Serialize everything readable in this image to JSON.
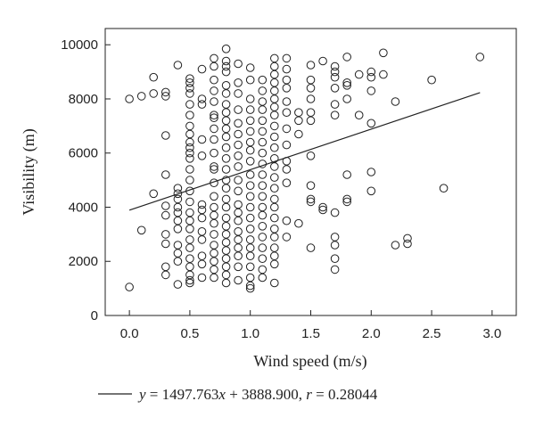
{
  "chart_data": {
    "type": "scatter",
    "xlabel": "Wind speed (m/s)",
    "ylabel": "Visibility (m)",
    "xlim": [
      -0.2,
      3.2
    ],
    "ylim": [
      0,
      10600
    ],
    "xticks": [
      0.0,
      0.5,
      1.0,
      1.5,
      2.0,
      2.5,
      3.0
    ],
    "xtick_labels": [
      "0.0",
      "0.5",
      "1.0",
      "1.5",
      "2.0",
      "2.5",
      "3.0"
    ],
    "yticks": [
      0,
      2000,
      4000,
      6000,
      8000,
      10000
    ],
    "ytick_labels": [
      "0",
      "2000",
      "4000",
      "6000",
      "8000",
      "10000"
    ],
    "grid": false,
    "fit_line": {
      "slope": 1497.763,
      "intercept": 3888.9,
      "x_range": [
        0.0,
        2.9
      ]
    },
    "legend": {
      "position": "bottom",
      "y_var": "y",
      "text_eq": " = 1497.763",
      "x_var": "x",
      "text_rest": " + 3888.900, ",
      "r_var": "r",
      "text_r": " = 0.28044"
    },
    "points": [
      [
        0.0,
        8000
      ],
      [
        0.0,
        1050
      ],
      [
        0.1,
        8100
      ],
      [
        0.1,
        3150
      ],
      [
        0.2,
        8800
      ],
      [
        0.2,
        8200
      ],
      [
        0.2,
        4500
      ],
      [
        0.3,
        8250
      ],
      [
        0.3,
        8100
      ],
      [
        0.3,
        6650
      ],
      [
        0.3,
        5200
      ],
      [
        0.3,
        4050
      ],
      [
        0.3,
        3700
      ],
      [
        0.3,
        3000
      ],
      [
        0.3,
        2650
      ],
      [
        0.3,
        1800
      ],
      [
        0.3,
        1500
      ],
      [
        0.4,
        9250
      ],
      [
        0.4,
        4700
      ],
      [
        0.4,
        4500
      ],
      [
        0.4,
        4300
      ],
      [
        0.4,
        4000
      ],
      [
        0.4,
        3800
      ],
      [
        0.4,
        3500
      ],
      [
        0.4,
        3200
      ],
      [
        0.4,
        2600
      ],
      [
        0.4,
        2300
      ],
      [
        0.4,
        2000
      ],
      [
        0.4,
        1150
      ],
      [
        0.5,
        8750
      ],
      [
        0.5,
        8600
      ],
      [
        0.5,
        8400
      ],
      [
        0.5,
        8200
      ],
      [
        0.5,
        7800
      ],
      [
        0.5,
        7400
      ],
      [
        0.5,
        7000
      ],
      [
        0.5,
        6700
      ],
      [
        0.5,
        6400
      ],
      [
        0.5,
        6200
      ],
      [
        0.5,
        6000
      ],
      [
        0.5,
        5800
      ],
      [
        0.5,
        5400
      ],
      [
        0.5,
        5000
      ],
      [
        0.5,
        4600
      ],
      [
        0.5,
        4200
      ],
      [
        0.5,
        3800
      ],
      [
        0.5,
        3500
      ],
      [
        0.5,
        3200
      ],
      [
        0.5,
        2800
      ],
      [
        0.5,
        2500
      ],
      [
        0.5,
        2100
      ],
      [
        0.5,
        1800
      ],
      [
        0.5,
        1500
      ],
      [
        0.5,
        1300
      ],
      [
        0.5,
        1200
      ],
      [
        0.6,
        9100
      ],
      [
        0.6,
        8000
      ],
      [
        0.6,
        7800
      ],
      [
        0.6,
        6500
      ],
      [
        0.6,
        5900
      ],
      [
        0.6,
        4100
      ],
      [
        0.6,
        3900
      ],
      [
        0.6,
        3600
      ],
      [
        0.6,
        3100
      ],
      [
        0.6,
        2800
      ],
      [
        0.6,
        2200
      ],
      [
        0.6,
        1900
      ],
      [
        0.6,
        1400
      ],
      [
        0.7,
        9500
      ],
      [
        0.7,
        9200
      ],
      [
        0.7,
        8700
      ],
      [
        0.7,
        8300
      ],
      [
        0.7,
        7900
      ],
      [
        0.7,
        7400
      ],
      [
        0.7,
        7300
      ],
      [
        0.7,
        6900
      ],
      [
        0.7,
        6500
      ],
      [
        0.7,
        6000
      ],
      [
        0.7,
        5500
      ],
      [
        0.7,
        5400
      ],
      [
        0.7,
        4900
      ],
      [
        0.7,
        4400
      ],
      [
        0.7,
        4000
      ],
      [
        0.7,
        3700
      ],
      [
        0.7,
        3400
      ],
      [
        0.7,
        3000
      ],
      [
        0.7,
        2600
      ],
      [
        0.7,
        2300
      ],
      [
        0.7,
        2000
      ],
      [
        0.7,
        1700
      ],
      [
        0.7,
        1400
      ],
      [
        0.8,
        9850
      ],
      [
        0.8,
        9400
      ],
      [
        0.8,
        9200
      ],
      [
        0.8,
        9000
      ],
      [
        0.8,
        8500
      ],
      [
        0.8,
        8200
      ],
      [
        0.8,
        7800
      ],
      [
        0.8,
        7500
      ],
      [
        0.8,
        7200
      ],
      [
        0.8,
        6900
      ],
      [
        0.8,
        6600
      ],
      [
        0.8,
        6200
      ],
      [
        0.8,
        5800
      ],
      [
        0.8,
        5400
      ],
      [
        0.8,
        5000
      ],
      [
        0.8,
        4700
      ],
      [
        0.8,
        4300
      ],
      [
        0.8,
        4000
      ],
      [
        0.8,
        3600
      ],
      [
        0.8,
        3300
      ],
      [
        0.8,
        3000
      ],
      [
        0.8,
        2700
      ],
      [
        0.8,
        2400
      ],
      [
        0.8,
        2100
      ],
      [
        0.8,
        1800
      ],
      [
        0.8,
        1500
      ],
      [
        0.8,
        1200
      ],
      [
        0.9,
        9300
      ],
      [
        0.9,
        8600
      ],
      [
        0.9,
        8200
      ],
      [
        0.9,
        7600
      ],
      [
        0.9,
        7100
      ],
      [
        0.9,
        6700
      ],
      [
        0.9,
        6300
      ],
      [
        0.9,
        5900
      ],
      [
        0.9,
        5500
      ],
      [
        0.9,
        5000
      ],
      [
        0.9,
        4600
      ],
      [
        0.9,
        4100
      ],
      [
        0.9,
        3800
      ],
      [
        0.9,
        3500
      ],
      [
        0.9,
        3100
      ],
      [
        0.9,
        2800
      ],
      [
        0.9,
        2500
      ],
      [
        0.9,
        2200
      ],
      [
        0.9,
        1800
      ],
      [
        0.9,
        1300
      ],
      [
        1.0,
        9150
      ],
      [
        1.0,
        8700
      ],
      [
        1.0,
        8000
      ],
      [
        1.0,
        7600
      ],
      [
        1.0,
        7200
      ],
      [
        1.0,
        6800
      ],
      [
        1.0,
        6400
      ],
      [
        1.0,
        6100
      ],
      [
        1.0,
        5700
      ],
      [
        1.0,
        5200
      ],
      [
        1.0,
        4800
      ],
      [
        1.0,
        4400
      ],
      [
        1.0,
        4000
      ],
      [
        1.0,
        3600
      ],
      [
        1.0,
        3200
      ],
      [
        1.0,
        2800
      ],
      [
        1.0,
        2500
      ],
      [
        1.0,
        2200
      ],
      [
        1.0,
        1800
      ],
      [
        1.0,
        1400
      ],
      [
        1.0,
        1100
      ],
      [
        1.0,
        1000
      ],
      [
        1.1,
        8700
      ],
      [
        1.1,
        8300
      ],
      [
        1.1,
        7900
      ],
      [
        1.1,
        7600
      ],
      [
        1.1,
        7200
      ],
      [
        1.1,
        6800
      ],
      [
        1.1,
        6400
      ],
      [
        1.1,
        6000
      ],
      [
        1.1,
        5600
      ],
      [
        1.1,
        5200
      ],
      [
        1.1,
        4800
      ],
      [
        1.1,
        4400
      ],
      [
        1.1,
        4000
      ],
      [
        1.1,
        3700
      ],
      [
        1.1,
        3300
      ],
      [
        1.1,
        2900
      ],
      [
        1.1,
        2500
      ],
      [
        1.1,
        2100
      ],
      [
        1.1,
        1700
      ],
      [
        1.1,
        1400
      ],
      [
        1.2,
        9500
      ],
      [
        1.2,
        9200
      ],
      [
        1.2,
        8900
      ],
      [
        1.2,
        8600
      ],
      [
        1.2,
        8300
      ],
      [
        1.2,
        8000
      ],
      [
        1.2,
        7700
      ],
      [
        1.2,
        7400
      ],
      [
        1.2,
        7000
      ],
      [
        1.2,
        6600
      ],
      [
        1.2,
        6200
      ],
      [
        1.2,
        5800
      ],
      [
        1.2,
        5500
      ],
      [
        1.2,
        5100
      ],
      [
        1.2,
        4700
      ],
      [
        1.2,
        4300
      ],
      [
        1.2,
        4000
      ],
      [
        1.2,
        3600
      ],
      [
        1.2,
        3200
      ],
      [
        1.2,
        2900
      ],
      [
        1.2,
        2500
      ],
      [
        1.2,
        2200
      ],
      [
        1.2,
        1900
      ],
      [
        1.2,
        1200
      ],
      [
        1.3,
        9500
      ],
      [
        1.3,
        9100
      ],
      [
        1.3,
        8700
      ],
      [
        1.3,
        8400
      ],
      [
        1.3,
        7900
      ],
      [
        1.3,
        7500
      ],
      [
        1.3,
        6900
      ],
      [
        1.3,
        6300
      ],
      [
        1.3,
        5700
      ],
      [
        1.3,
        5400
      ],
      [
        1.3,
        4900
      ],
      [
        1.3,
        3500
      ],
      [
        1.3,
        2900
      ],
      [
        1.4,
        7500
      ],
      [
        1.4,
        7200
      ],
      [
        1.4,
        6700
      ],
      [
        1.4,
        3400
      ],
      [
        1.5,
        9250
      ],
      [
        1.5,
        8700
      ],
      [
        1.5,
        8400
      ],
      [
        1.5,
        8000
      ],
      [
        1.5,
        7500
      ],
      [
        1.5,
        7200
      ],
      [
        1.5,
        5900
      ],
      [
        1.5,
        4800
      ],
      [
        1.5,
        4300
      ],
      [
        1.5,
        4200
      ],
      [
        1.5,
        2500
      ],
      [
        1.6,
        9400
      ],
      [
        1.6,
        4000
      ],
      [
        1.6,
        3900
      ],
      [
        1.7,
        9200
      ],
      [
        1.7,
        9000
      ],
      [
        1.7,
        8800
      ],
      [
        1.7,
        8400
      ],
      [
        1.7,
        7800
      ],
      [
        1.7,
        7400
      ],
      [
        1.7,
        3800
      ],
      [
        1.7,
        2900
      ],
      [
        1.7,
        2600
      ],
      [
        1.7,
        2100
      ],
      [
        1.7,
        1700
      ],
      [
        1.8,
        9550
      ],
      [
        1.8,
        8600
      ],
      [
        1.8,
        8500
      ],
      [
        1.8,
        8000
      ],
      [
        1.8,
        5200
      ],
      [
        1.8,
        4300
      ],
      [
        1.8,
        4200
      ],
      [
        1.9,
        8900
      ],
      [
        1.9,
        7400
      ],
      [
        2.0,
        9000
      ],
      [
        2.0,
        8800
      ],
      [
        2.0,
        8300
      ],
      [
        2.0,
        7100
      ],
      [
        2.0,
        5300
      ],
      [
        2.0,
        4600
      ],
      [
        2.1,
        9700
      ],
      [
        2.1,
        8900
      ],
      [
        2.2,
        7900
      ],
      [
        2.2,
        2600
      ],
      [
        2.3,
        2850
      ],
      [
        2.3,
        2650
      ],
      [
        2.5,
        8700
      ],
      [
        2.6,
        4700
      ],
      [
        2.9,
        9550
      ]
    ]
  }
}
